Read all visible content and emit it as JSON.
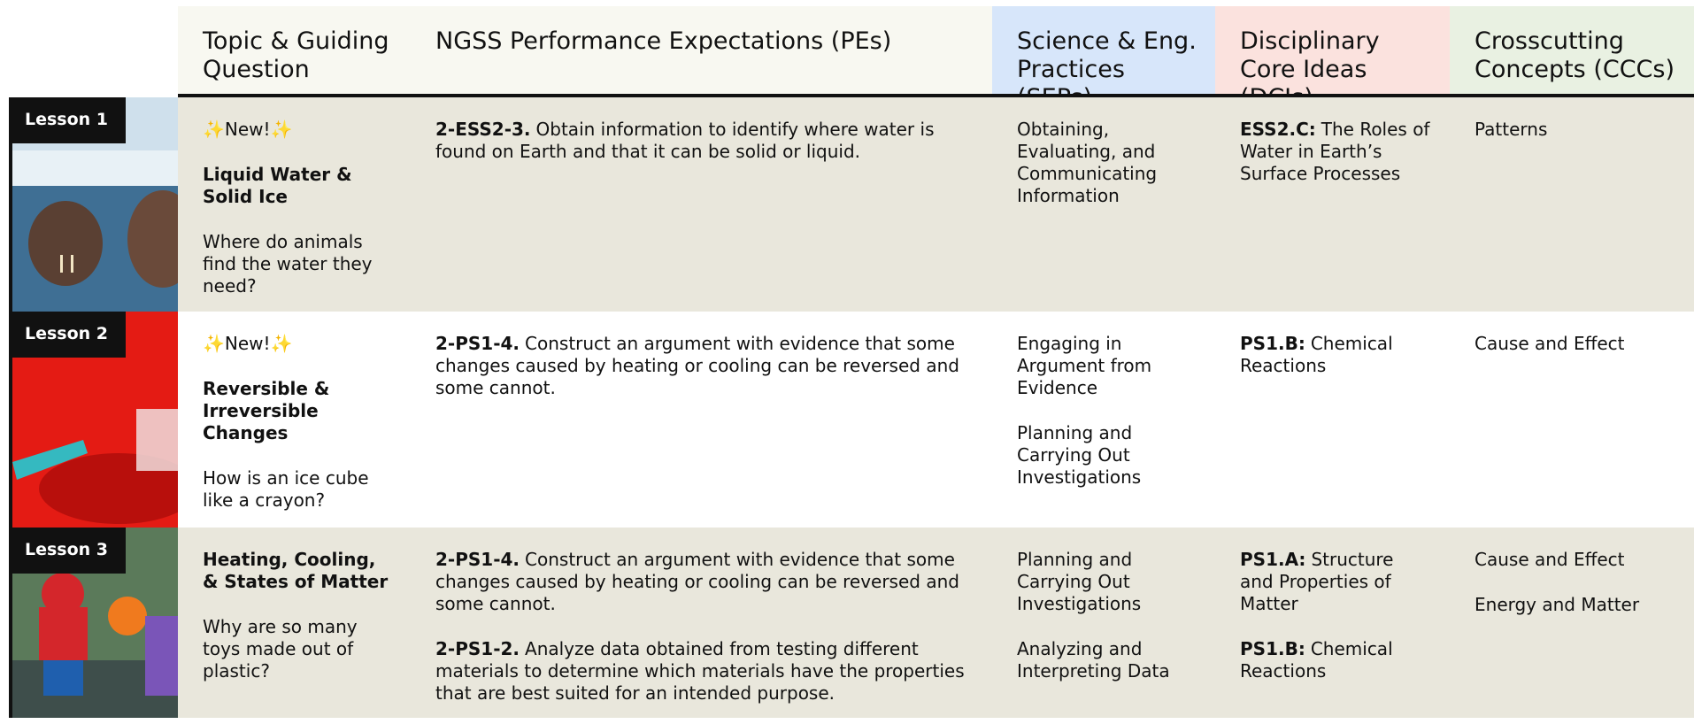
{
  "header": {
    "columns": [
      "Topic & Guiding Question",
      "NGSS Performance Expectations (PEs)",
      "Science & Eng. Practices (SEPs)",
      "Disciplinary Core Ideas (DCIs)",
      "Crosscutting Concepts (CCCs)"
    ]
  },
  "rows": [
    {
      "lesson": "Lesson 1",
      "badge": "✨New!✨",
      "title": "Liquid Water & Solid Ice",
      "question": "Where do animals find the water they need?",
      "pes": [
        {
          "code": "2-ESS2-3.",
          "text": "Obtain information to identify where water is found on Earth and that it can be solid or liquid."
        }
      ],
      "seps": [
        "Obtaining, Evaluating, and Communicating Information"
      ],
      "dcis": [
        {
          "code": "ESS2.C:",
          "text": "The Roles of Water in Earth’s Surface Processes"
        }
      ],
      "cccs": [
        "Patterns"
      ]
    },
    {
      "lesson": "Lesson 2",
      "badge": "✨New!✨",
      "title": "Reversible & Irreversible Changes",
      "question": "How is an ice cube like a crayon?",
      "pes": [
        {
          "code": "2-PS1-4.",
          "text": "Construct an argument with evidence that some changes caused by heating or cooling can be reversed and some cannot."
        }
      ],
      "seps": [
        "Engaging in Argument from Evidence",
        "Planning and Carrying Out Investigations"
      ],
      "dcis": [
        {
          "code": "PS1.B:",
          "text": "Chemical Reactions"
        }
      ],
      "cccs": [
        "Cause and Effect"
      ]
    },
    {
      "lesson": "Lesson 3",
      "title": "Heating, Cooling, & States of Matter",
      "question": "Why are so many toys made out of plastic?",
      "pes": [
        {
          "code": "2-PS1-4.",
          "text": "Construct an argument with evidence that some changes caused by heating or cooling can be reversed and some cannot."
        },
        {
          "code": "2-PS1-2.",
          "text": "Analyze data obtained from testing different materials to determine which materials have the properties that are best suited for an intended purpose."
        }
      ],
      "seps": [
        "Planning and Carrying Out Investigations",
        "Analyzing and Interpreting Data"
      ],
      "dcis": [
        {
          "code": "PS1.A:",
          "text": "Structure and Properties of Matter"
        },
        {
          "code": "PS1.B:",
          "text": "Chemical Reactions"
        }
      ],
      "cccs": [
        "Cause and Effect",
        "Energy and Matter"
      ]
    }
  ]
}
